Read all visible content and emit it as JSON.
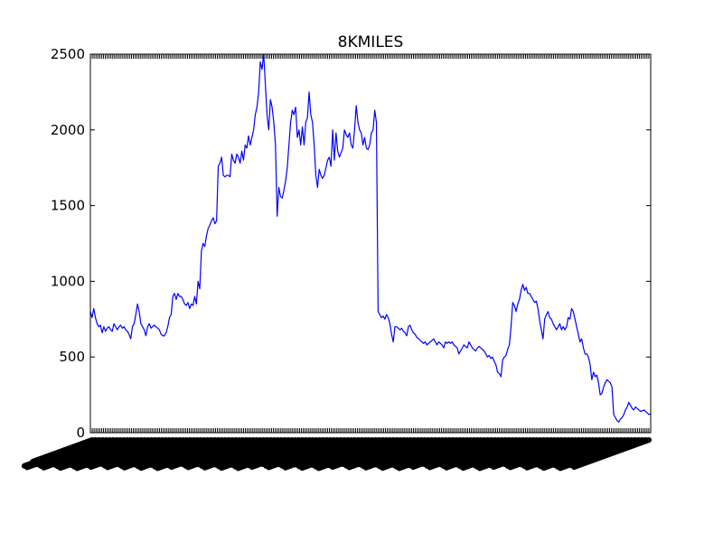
{
  "chart_data": {
    "type": "line",
    "title": "8KMILES",
    "xlabel": "",
    "ylabel": "",
    "ylim": [
      0,
      2500
    ],
    "yticks": [
      0,
      500,
      1000,
      1500,
      2000,
      2500
    ],
    "ytick_labels": [
      "0",
      "500",
      "1000",
      "1500",
      "2000",
      "2500"
    ],
    "grid": false,
    "legend": "none",
    "x_tick_labels_note": "dense overlapping date labels, rotated and illegible",
    "series": [
      {
        "color": "#0000ff",
        "values": [
          800,
          760,
          820,
          760,
          720,
          700,
          710,
          660,
          700,
          670,
          690,
          700,
          680,
          670,
          720,
          700,
          680,
          700,
          710,
          690,
          700,
          680,
          670,
          650,
          620,
          700,
          720,
          780,
          850,
          800,
          720,
          700,
          680,
          640,
          700,
          720,
          690,
          700,
          710,
          700,
          690,
          680,
          650,
          640,
          640,
          660,
          700,
          760,
          780,
          900,
          920,
          880,
          920,
          900,
          900,
          880,
          850,
          840,
          860,
          820,
          850,
          840,
          900,
          850,
          1000,
          950,
          1200,
          1250,
          1230,
          1300,
          1350,
          1370,
          1400,
          1420,
          1380,
          1400,
          1760,
          1780,
          1820,
          1700,
          1690,
          1700,
          1700,
          1690,
          1840,
          1800,
          1780,
          1840,
          1820,
          1780,
          1860,
          1800,
          1900,
          1880,
          1960,
          1900,
          1950,
          2000,
          2100,
          2150,
          2250,
          2450,
          2400,
          2500,
          2300,
          2100,
          2000,
          2200,
          2150,
          2050,
          1900,
          1430,
          1620,
          1560,
          1550,
          1600,
          1660,
          1750,
          1900,
          2050,
          2130,
          2100,
          2150,
          1950,
          2000,
          1900,
          2020,
          1900,
          2050,
          2080,
          2250,
          2100,
          2050,
          1900,
          1700,
          1620,
          1740,
          1700,
          1680,
          1700,
          1750,
          1800,
          1820,
          1760,
          2000,
          1800,
          1980,
          1860,
          1820,
          1850,
          1880,
          2000,
          1970,
          1950,
          1980,
          1900,
          1880,
          2000,
          2160,
          2050,
          2000,
          1980,
          1900,
          1950,
          1880,
          1870,
          1900,
          1980,
          2000,
          2130,
          2050,
          800,
          780,
          760,
          770,
          750,
          780,
          760,
          720,
          650,
          600,
          700,
          700,
          690,
          680,
          690,
          670,
          660,
          640,
          700,
          710,
          680,
          660,
          650,
          630,
          620,
          610,
          600,
          590,
          600,
          580,
          590,
          600,
          610,
          620,
          600,
          580,
          600,
          590,
          580,
          560,
          600,
          590,
          600,
          590,
          600,
          580,
          570,
          560,
          520,
          540,
          560,
          580,
          570,
          560,
          600,
          580,
          560,
          550,
          540,
          560,
          570,
          560,
          550,
          540,
          520,
          500,
          510,
          490,
          500,
          470,
          450,
          400,
          390,
          370,
          480,
          500,
          510,
          550,
          580,
          700,
          860,
          840,
          800,
          850,
          880,
          940,
          980,
          940,
          960,
          920,
          920,
          900,
          880,
          860,
          870,
          820,
          740,
          680,
          620,
          750,
          780,
          800,
          760,
          750,
          720,
          700,
          680,
          700,
          720,
          680,
          700,
          680,
          700,
          760,
          750,
          820,
          800,
          750,
          700,
          650,
          600,
          620,
          560,
          520,
          520,
          500,
          450,
          350,
          400,
          370,
          380,
          330,
          250,
          260,
          300,
          330,
          350,
          340,
          330,
          300,
          120,
          100,
          80,
          70,
          90,
          100,
          120,
          150,
          170,
          200,
          180,
          160,
          150,
          170,
          160,
          150,
          140,
          145,
          150,
          140,
          130,
          120,
          125
        ]
      }
    ]
  }
}
